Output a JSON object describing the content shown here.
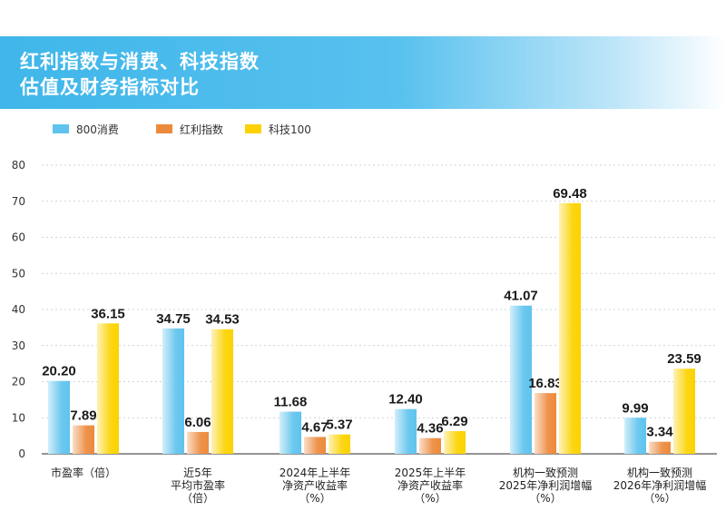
{
  "title": {
    "line1": "红利指数与消费、科技指数",
    "line2": "估值及财务指标对比"
  },
  "colors": {
    "series": [
      "#5fc3ee",
      "#ec8a3c",
      "#fcd200"
    ],
    "grid": "#bfc8cf",
    "axis": "#555555"
  },
  "chart_data": {
    "type": "bar",
    "title": "红利指数与消费、科技指数估值及财务指标对比",
    "xlabel": "",
    "ylabel": "",
    "ylim": [
      0,
      80
    ],
    "yticks": [
      0,
      10,
      20,
      30,
      40,
      50,
      60,
      70,
      80
    ],
    "grid": true,
    "legend_position": "top-left",
    "categories": [
      [
        "市盈率（倍）"
      ],
      [
        "近5年",
        "平均市盈率",
        "（倍）"
      ],
      [
        "2024年上半年",
        "净资产收益率",
        "（%）"
      ],
      [
        "2025年上半年",
        "净资产收益率",
        "（%）"
      ],
      [
        "机构一致预测",
        "2025年净利润增幅",
        "（%）"
      ],
      [
        "机构一致预测",
        "2026年净利润增幅",
        "（%）"
      ]
    ],
    "series": [
      {
        "name": "800消费",
        "values": [
          20.2,
          34.75,
          11.68,
          12.4,
          41.07,
          9.99
        ]
      },
      {
        "name": "红利指数",
        "values": [
          7.89,
          6.06,
          4.67,
          4.36,
          16.83,
          3.34
        ]
      },
      {
        "name": "科技100",
        "values": [
          36.15,
          34.53,
          5.37,
          6.29,
          69.48,
          23.59
        ]
      }
    ]
  }
}
